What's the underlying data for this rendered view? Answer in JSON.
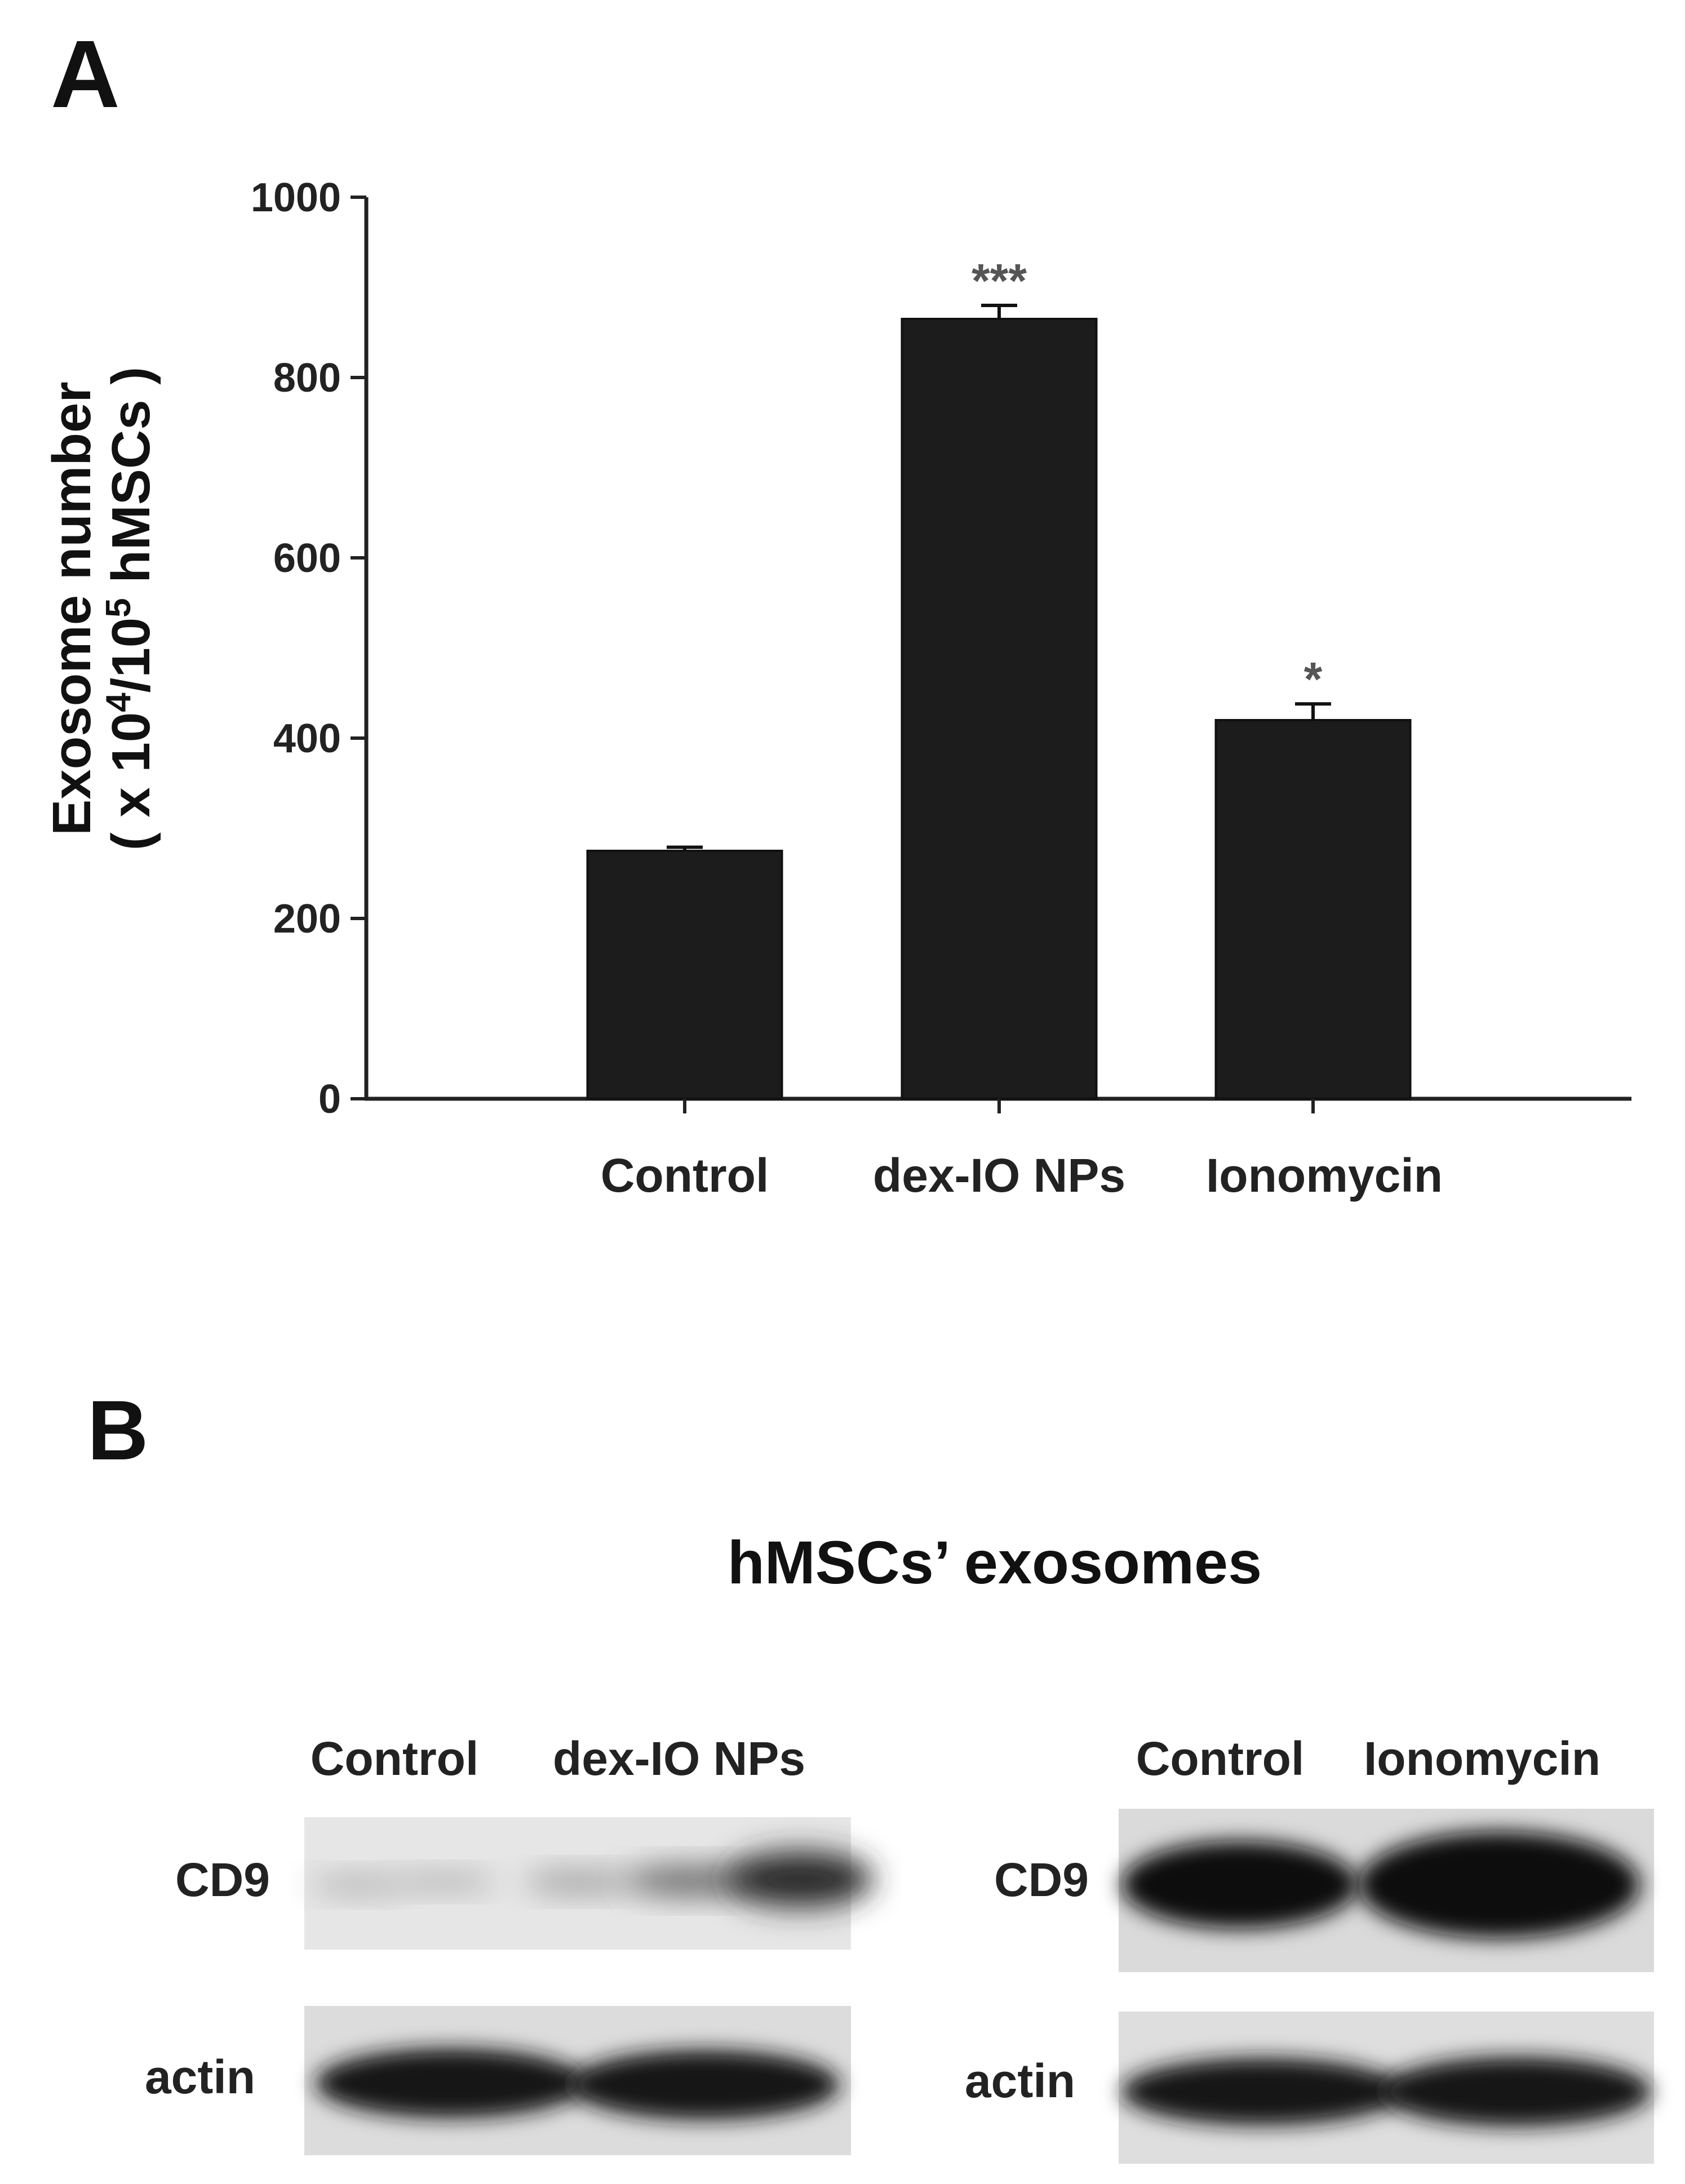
{
  "panels": {
    "a_label": "A",
    "b_label": "B"
  },
  "chart_data": {
    "type": "bar",
    "categories": [
      "Control",
      "dex-IO NPs",
      "Ionomycin"
    ],
    "values": [
      275,
      865,
      420
    ],
    "errors": [
      4,
      15,
      18
    ],
    "significance": [
      "",
      "***",
      "*"
    ],
    "ylabel_line1": "Exosome number",
    "ylabel_line2_prefix": "( x 10",
    "ylabel_sup1": "4",
    "ylabel_mid": "/10",
    "ylabel_sup2": "5",
    "ylabel_suffix": " hMSCs )",
    "ylim": [
      0,
      1000
    ],
    "yticks": [
      0,
      200,
      400,
      600,
      800,
      1000
    ],
    "grid": false,
    "bar_color": "#1c1c1c"
  },
  "blot": {
    "title": "hMSCs’ exosomes",
    "left": {
      "lanes": [
        "Control",
        "dex-IO NPs"
      ],
      "rows": [
        "CD9",
        "actin"
      ]
    },
    "right": {
      "lanes": [
        "Control",
        "Ionomycin"
      ],
      "rows": [
        "CD9",
        "actin"
      ]
    }
  }
}
